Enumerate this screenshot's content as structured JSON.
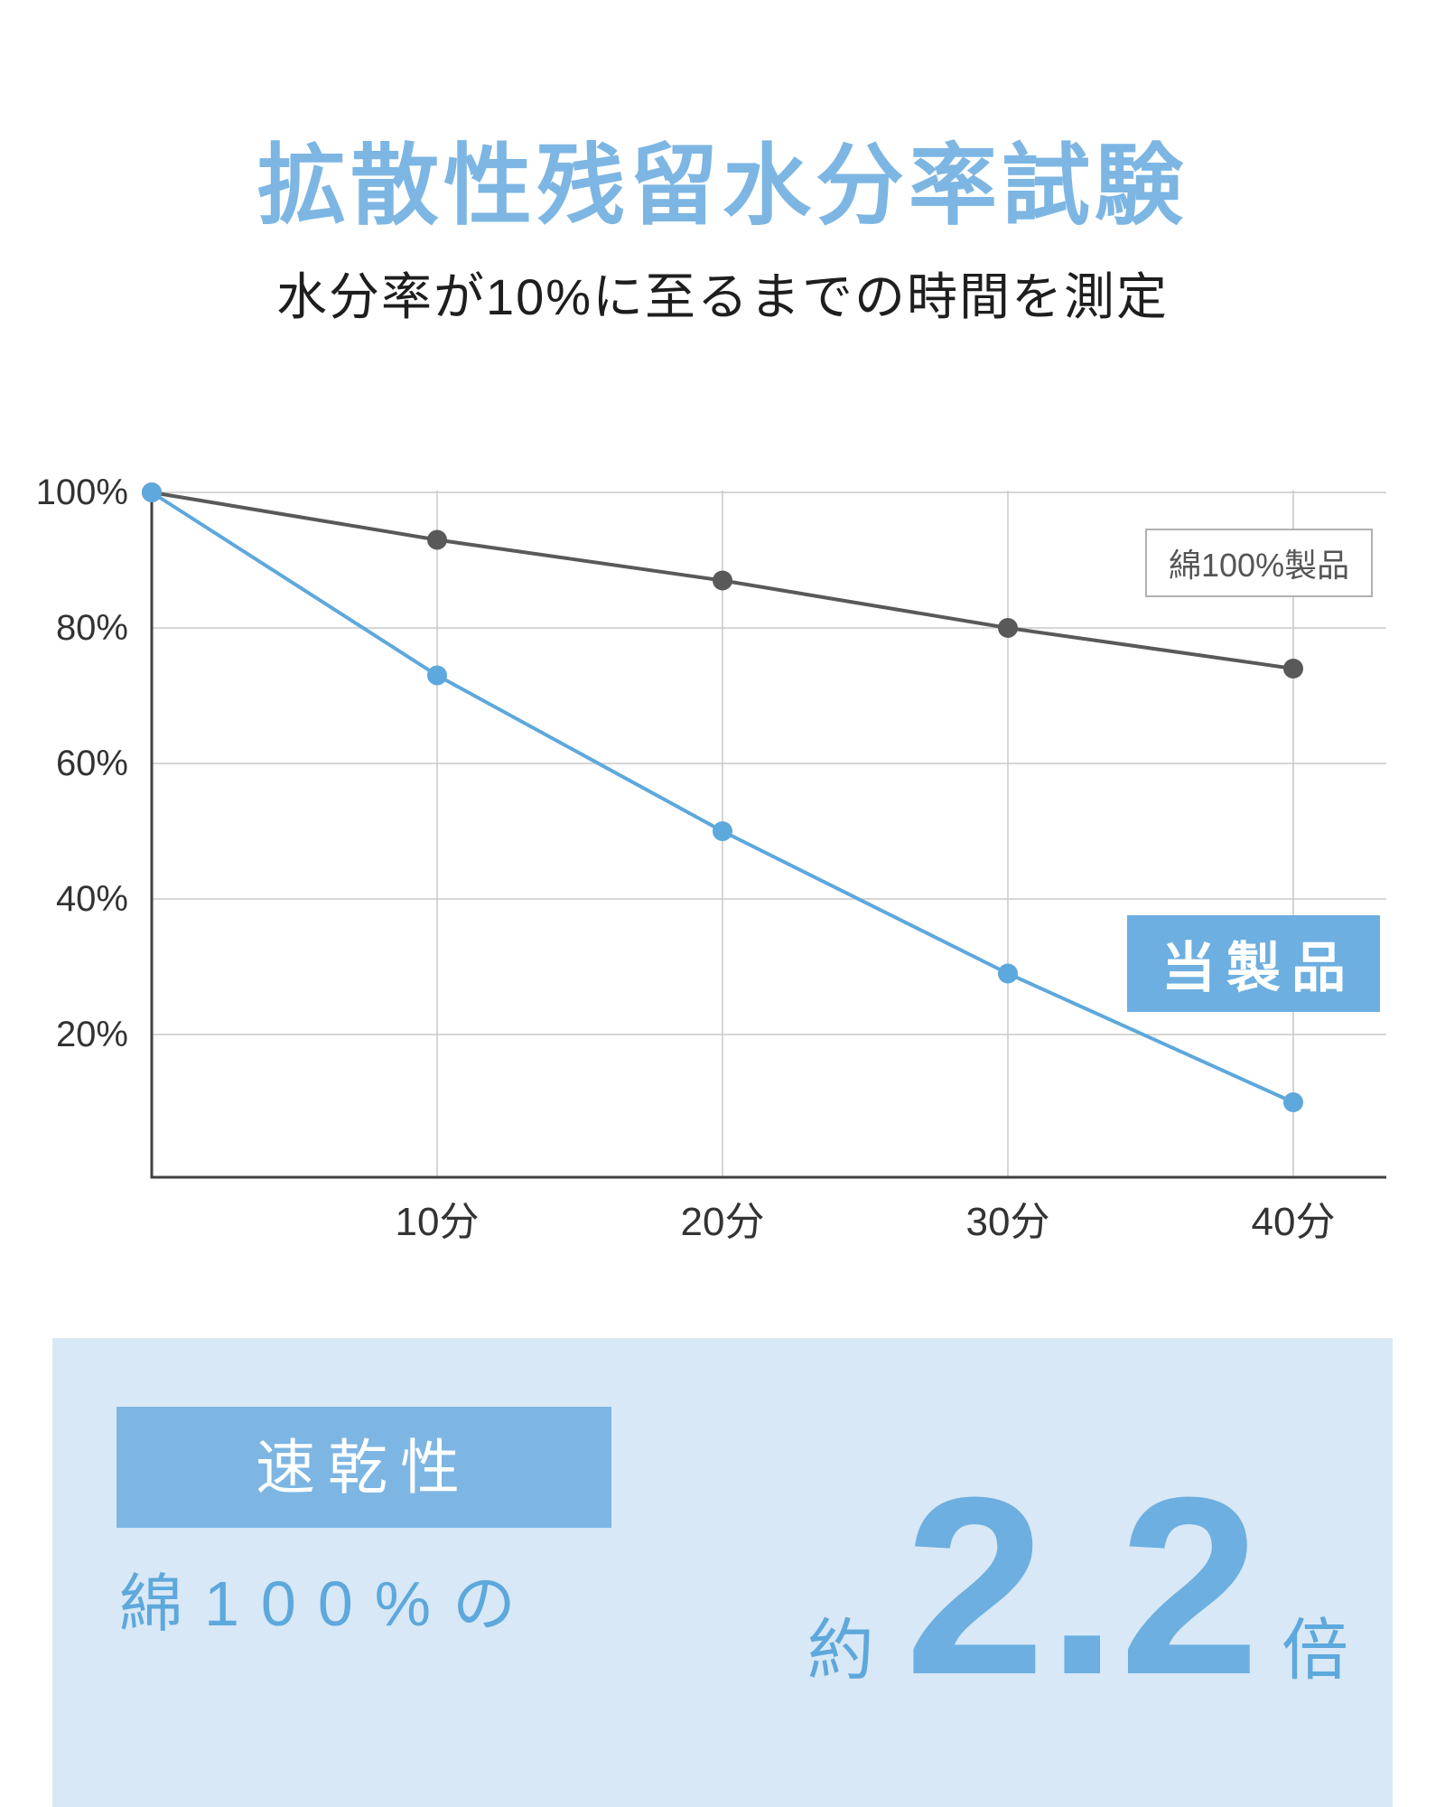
{
  "header": {
    "title": "拡散性残留水分率試験",
    "subtitle": "水分率が10%に至るまでの時間を測定"
  },
  "chart_data": {
    "type": "line",
    "x": [
      0,
      10,
      20,
      30,
      40
    ],
    "x_unit": "分",
    "x_tick_labels": [
      "10分",
      "20分",
      "30分",
      "40分"
    ],
    "yticks": [
      20,
      40,
      60,
      80,
      100
    ],
    "ytick_suffix": "%",
    "ylim": [
      0,
      100
    ],
    "grid": true,
    "legend_position": "inside-top-right",
    "series": [
      {
        "name": "綿100%製品",
        "values": [
          100,
          93,
          87,
          80,
          74
        ],
        "color": "#595959"
      },
      {
        "name": "当製品",
        "values": [
          100,
          73,
          50,
          29,
          10
        ],
        "color": "#5da8dc"
      }
    ]
  },
  "summary": {
    "category": "速乾性",
    "comparison": "綿100%の",
    "approx": "約",
    "value": "2.2",
    "unit": "倍"
  },
  "colors": {
    "title_blue": "#7db6e3",
    "line_blue": "#5da8dc",
    "badge_blue": "#6cafe0",
    "panel_bg": "#d8e8f6",
    "cotton_gray": "#595959",
    "grid_gray": "#c9c9c9",
    "axis_dark": "#404040"
  }
}
